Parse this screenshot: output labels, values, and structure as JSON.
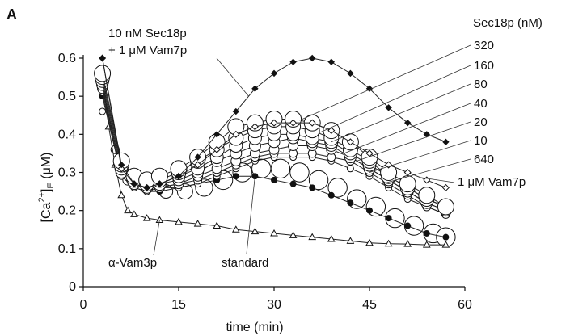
{
  "panel_label": "A",
  "chart_data": {
    "type": "scatter",
    "panel": "A",
    "xlabel": "time (min)",
    "ylabel": "[Ca2+]E (μM)",
    "ylabel_parts": {
      "open": "[Ca",
      "sup": "2+",
      "close": "]",
      "sub": "E",
      "units": " (μM)"
    },
    "xlim": [
      0,
      60
    ],
    "ylim": [
      0,
      0.6
    ],
    "xticks": [
      0,
      15,
      30,
      45,
      60
    ],
    "yticks": [
      0,
      0.1,
      0.2,
      0.3,
      0.4,
      0.5,
      0.6
    ],
    "xtick_labels": [
      "0",
      "15",
      "30",
      "45",
      "60"
    ],
    "ytick_labels": [
      "0",
      "0.1",
      "0.2",
      "0.3",
      "0.4",
      "0.5",
      "0.6"
    ],
    "grid": false,
    "legend_header": "Sec18p (nM)",
    "annotations": {
      "combo_line1": "10 nM Sec18p",
      "combo_line2": "+ 1 μM Vam7p",
      "vam7p": "1 μM Vam7p",
      "anti_vam3p": "α-Vam3p",
      "standard": "standard"
    },
    "series": [
      {
        "name": "10 nM Sec18p + 1 μM Vam7p",
        "marker": "filled-diamond",
        "label_x": 26,
        "points": [
          [
            3,
            0.6
          ],
          [
            6,
            0.32
          ],
          [
            8,
            0.27
          ],
          [
            10,
            0.26
          ],
          [
            12,
            0.27
          ],
          [
            15,
            0.29
          ],
          [
            18,
            0.34
          ],
          [
            21,
            0.4
          ],
          [
            24,
            0.46
          ],
          [
            27,
            0.52
          ],
          [
            30,
            0.56
          ],
          [
            33,
            0.59
          ],
          [
            36,
            0.6
          ],
          [
            39,
            0.59
          ],
          [
            42,
            0.56
          ],
          [
            45,
            0.52
          ],
          [
            48,
            0.47
          ],
          [
            51,
            0.43
          ],
          [
            54,
            0.4
          ],
          [
            57,
            0.38
          ]
        ]
      },
      {
        "name": "1 μM Vam7p",
        "marker": "open-diamond",
        "label_x": 53,
        "points": [
          [
            3,
            0.6
          ],
          [
            6,
            0.31
          ],
          [
            8,
            0.27
          ],
          [
            10,
            0.26
          ],
          [
            12,
            0.27
          ],
          [
            15,
            0.29
          ],
          [
            18,
            0.32
          ],
          [
            21,
            0.36
          ],
          [
            24,
            0.4
          ],
          [
            27,
            0.42
          ],
          [
            30,
            0.43
          ],
          [
            33,
            0.43
          ],
          [
            36,
            0.43
          ],
          [
            39,
            0.41
          ],
          [
            42,
            0.38
          ],
          [
            45,
            0.35
          ],
          [
            48,
            0.32
          ],
          [
            51,
            0.3
          ],
          [
            54,
            0.28
          ],
          [
            57,
            0.26
          ]
        ]
      },
      {
        "name": "320",
        "marker": "open-circle",
        "size": 10,
        "label_x": 34,
        "points": [
          [
            3,
            0.56
          ],
          [
            6,
            0.33
          ],
          [
            8,
            0.29
          ],
          [
            10,
            0.28
          ],
          [
            12,
            0.29
          ],
          [
            15,
            0.31
          ],
          [
            18,
            0.34
          ],
          [
            21,
            0.38
          ],
          [
            24,
            0.42
          ],
          [
            27,
            0.43
          ],
          [
            30,
            0.44
          ],
          [
            33,
            0.44
          ],
          [
            36,
            0.43
          ],
          [
            39,
            0.41
          ],
          [
            42,
            0.38
          ],
          [
            45,
            0.34
          ],
          [
            48,
            0.3
          ],
          [
            51,
            0.27
          ],
          [
            54,
            0.24
          ],
          [
            57,
            0.21
          ]
        ]
      },
      {
        "name": "160",
        "marker": "open-circle",
        "size": 9,
        "label_x": 37,
        "points": [
          [
            3,
            0.55
          ],
          [
            6,
            0.32
          ],
          [
            8,
            0.28
          ],
          [
            10,
            0.27
          ],
          [
            12,
            0.28
          ],
          [
            15,
            0.3
          ],
          [
            18,
            0.33
          ],
          [
            21,
            0.36
          ],
          [
            24,
            0.39
          ],
          [
            27,
            0.41
          ],
          [
            30,
            0.42
          ],
          [
            33,
            0.42
          ],
          [
            36,
            0.41
          ],
          [
            39,
            0.39
          ],
          [
            42,
            0.36
          ],
          [
            45,
            0.33
          ],
          [
            48,
            0.29
          ],
          [
            51,
            0.26
          ],
          [
            54,
            0.23
          ],
          [
            57,
            0.21
          ]
        ]
      },
      {
        "name": "80",
        "marker": "open-circle",
        "size": 8,
        "label_x": 39,
        "points": [
          [
            3,
            0.54
          ],
          [
            6,
            0.31
          ],
          [
            8,
            0.28
          ],
          [
            10,
            0.27
          ],
          [
            12,
            0.27
          ],
          [
            15,
            0.29
          ],
          [
            18,
            0.31
          ],
          [
            21,
            0.34
          ],
          [
            24,
            0.37
          ],
          [
            27,
            0.39
          ],
          [
            30,
            0.4
          ],
          [
            33,
            0.4
          ],
          [
            36,
            0.39
          ],
          [
            39,
            0.38
          ],
          [
            42,
            0.35
          ],
          [
            45,
            0.32
          ],
          [
            48,
            0.29
          ],
          [
            51,
            0.26
          ],
          [
            54,
            0.23
          ],
          [
            57,
            0.21
          ]
        ]
      },
      {
        "name": "40",
        "marker": "open-circle",
        "size": 7,
        "label_x": 41,
        "points": [
          [
            3,
            0.53
          ],
          [
            6,
            0.3
          ],
          [
            8,
            0.27
          ],
          [
            10,
            0.26
          ],
          [
            12,
            0.27
          ],
          [
            15,
            0.28
          ],
          [
            18,
            0.3
          ],
          [
            21,
            0.33
          ],
          [
            24,
            0.35
          ],
          [
            27,
            0.37
          ],
          [
            30,
            0.38
          ],
          [
            33,
            0.39
          ],
          [
            36,
            0.38
          ],
          [
            39,
            0.37
          ],
          [
            42,
            0.34
          ],
          [
            45,
            0.31
          ],
          [
            48,
            0.28
          ],
          [
            51,
            0.25
          ],
          [
            54,
            0.22
          ],
          [
            57,
            0.2
          ]
        ]
      },
      {
        "name": "20",
        "marker": "open-circle",
        "size": 6,
        "label_x": 43,
        "points": [
          [
            3,
            0.52
          ],
          [
            6,
            0.3
          ],
          [
            8,
            0.27
          ],
          [
            10,
            0.26
          ],
          [
            12,
            0.26
          ],
          [
            15,
            0.27
          ],
          [
            18,
            0.29
          ],
          [
            21,
            0.31
          ],
          [
            24,
            0.33
          ],
          [
            27,
            0.35
          ],
          [
            30,
            0.36
          ],
          [
            33,
            0.37
          ],
          [
            36,
            0.37
          ],
          [
            39,
            0.36
          ],
          [
            42,
            0.34
          ],
          [
            45,
            0.31
          ],
          [
            48,
            0.28
          ],
          [
            51,
            0.25
          ],
          [
            54,
            0.22
          ],
          [
            57,
            0.2
          ]
        ]
      },
      {
        "name": "10",
        "marker": "open-circle",
        "size": 5,
        "label_x": 45,
        "points": [
          [
            3,
            0.52
          ],
          [
            6,
            0.3
          ],
          [
            8,
            0.27
          ],
          [
            10,
            0.26
          ],
          [
            12,
            0.26
          ],
          [
            15,
            0.27
          ],
          [
            18,
            0.28
          ],
          [
            21,
            0.3
          ],
          [
            24,
            0.32
          ],
          [
            27,
            0.34
          ],
          [
            30,
            0.35
          ],
          [
            33,
            0.35
          ],
          [
            36,
            0.35
          ],
          [
            39,
            0.34
          ],
          [
            42,
            0.33
          ],
          [
            45,
            0.3
          ],
          [
            48,
            0.27
          ],
          [
            51,
            0.24
          ],
          [
            54,
            0.21
          ],
          [
            57,
            0.19
          ]
        ]
      },
      {
        "name": "640",
        "marker": "open-circle",
        "size": 4,
        "label_x": 47,
        "points": [
          [
            3,
            0.51
          ],
          [
            6,
            0.29
          ],
          [
            8,
            0.26
          ],
          [
            10,
            0.25
          ],
          [
            12,
            0.26
          ],
          [
            15,
            0.26
          ],
          [
            18,
            0.27
          ],
          [
            21,
            0.29
          ],
          [
            24,
            0.31
          ],
          [
            27,
            0.33
          ],
          [
            30,
            0.34
          ],
          [
            33,
            0.34
          ],
          [
            36,
            0.34
          ],
          [
            39,
            0.33
          ],
          [
            42,
            0.31
          ],
          [
            45,
            0.29
          ],
          [
            48,
            0.26
          ],
          [
            51,
            0.23
          ],
          [
            54,
            0.21
          ],
          [
            57,
            0.19
          ]
        ]
      },
      {
        "name": "standard",
        "marker": "filled-circle",
        "label_x": 27,
        "points": [
          [
            3,
            0.5
          ],
          [
            6,
            0.29
          ],
          [
            8,
            0.26
          ],
          [
            10,
            0.25
          ],
          [
            12,
            0.25
          ],
          [
            15,
            0.26
          ],
          [
            18,
            0.27
          ],
          [
            21,
            0.28
          ],
          [
            24,
            0.29
          ],
          [
            27,
            0.29
          ],
          [
            30,
            0.28
          ],
          [
            33,
            0.27
          ],
          [
            36,
            0.26
          ],
          [
            39,
            0.24
          ],
          [
            42,
            0.22
          ],
          [
            45,
            0.2
          ],
          [
            48,
            0.18
          ],
          [
            51,
            0.16
          ],
          [
            54,
            0.14
          ],
          [
            57,
            0.13
          ]
        ]
      },
      {
        "name": "standard-scatter",
        "marker": "big-open-circle",
        "points": [
          [
            3,
            0.46
          ],
          [
            5,
            0.36
          ],
          [
            7,
            0.28
          ],
          [
            10,
            0.26
          ],
          [
            13,
            0.25
          ],
          [
            16,
            0.25
          ],
          [
            19,
            0.26
          ],
          [
            22,
            0.28
          ],
          [
            25,
            0.3
          ],
          [
            28,
            0.31
          ],
          [
            31,
            0.31
          ],
          [
            34,
            0.3
          ],
          [
            37,
            0.28
          ],
          [
            40,
            0.26
          ],
          [
            43,
            0.23
          ],
          [
            46,
            0.21
          ],
          [
            49,
            0.18
          ],
          [
            52,
            0.16
          ],
          [
            55,
            0.14
          ],
          [
            57,
            0.13
          ]
        ]
      },
      {
        "name": "α-Vam3p",
        "marker": "open-triangle",
        "label_x": 12,
        "points": [
          [
            3,
            0.56
          ],
          [
            4,
            0.42
          ],
          [
            5,
            0.32
          ],
          [
            6,
            0.24
          ],
          [
            7,
            0.2
          ],
          [
            8,
            0.19
          ],
          [
            10,
            0.18
          ],
          [
            12,
            0.175
          ],
          [
            15,
            0.17
          ],
          [
            18,
            0.165
          ],
          [
            21,
            0.16
          ],
          [
            24,
            0.15
          ],
          [
            27,
            0.145
          ],
          [
            30,
            0.14
          ],
          [
            33,
            0.135
          ],
          [
            36,
            0.13
          ],
          [
            39,
            0.125
          ],
          [
            42,
            0.12
          ],
          [
            45,
            0.115
          ],
          [
            48,
            0.113
          ],
          [
            51,
            0.112
          ],
          [
            54,
            0.11
          ],
          [
            57,
            0.11
          ]
        ]
      }
    ]
  }
}
